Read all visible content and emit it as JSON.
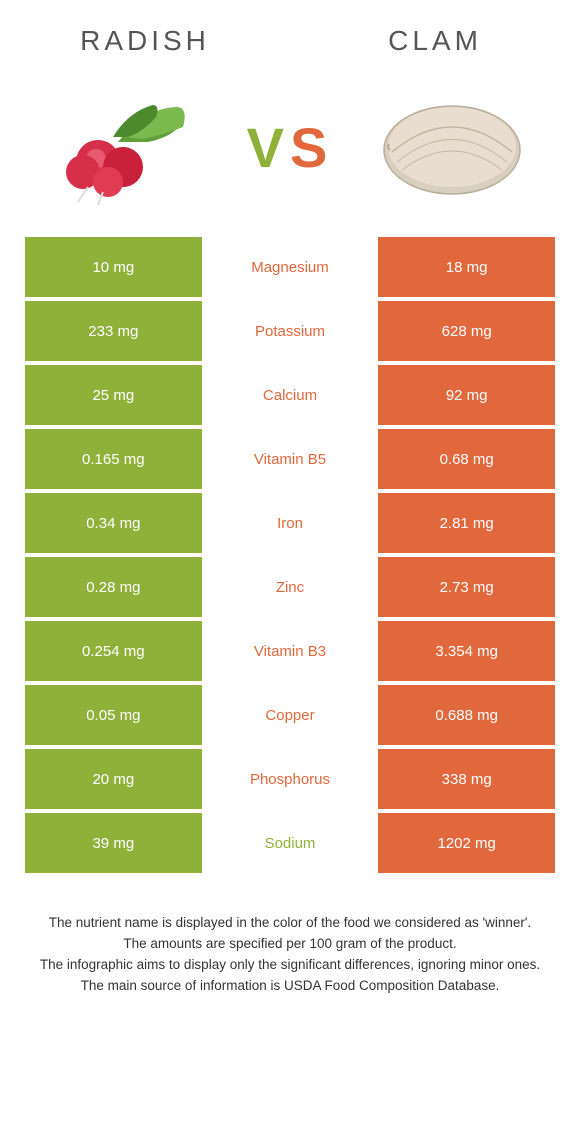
{
  "header": {
    "left_title": "Radish",
    "right_title": "Clam",
    "vs_v": "V",
    "vs_s": "S"
  },
  "colors": {
    "left": "#8fb13a",
    "right": "#e1683d",
    "text_dark": "#333333"
  },
  "rows": [
    {
      "left": "10 mg",
      "label": "Magnesium",
      "right": "18 mg",
      "winner": "right"
    },
    {
      "left": "233 mg",
      "label": "Potassium",
      "right": "628 mg",
      "winner": "right"
    },
    {
      "left": "25 mg",
      "label": "Calcium",
      "right": "92 mg",
      "winner": "right"
    },
    {
      "left": "0.165 mg",
      "label": "Vitamin B5",
      "right": "0.68 mg",
      "winner": "right"
    },
    {
      "left": "0.34 mg",
      "label": "Iron",
      "right": "2.81 mg",
      "winner": "right"
    },
    {
      "left": "0.28 mg",
      "label": "Zinc",
      "right": "2.73 mg",
      "winner": "right"
    },
    {
      "left": "0.254 mg",
      "label": "Vitamin B3",
      "right": "3.354 mg",
      "winner": "right"
    },
    {
      "left": "0.05 mg",
      "label": "Copper",
      "right": "0.688 mg",
      "winner": "right"
    },
    {
      "left": "20 mg",
      "label": "Phosphorus",
      "right": "338 mg",
      "winner": "right"
    },
    {
      "left": "39 mg",
      "label": "Sodium",
      "right": "1202 mg",
      "winner": "left"
    }
  ],
  "footer": {
    "line1": "The nutrient name is displayed in the color of the food we considered as 'winner'.",
    "line2": "The amounts are specified per 100 gram of the product.",
    "line3": "The infographic aims to display only the significant differences, ignoring minor ones.",
    "line4": "The main source of information is USDA Food Composition Database."
  }
}
